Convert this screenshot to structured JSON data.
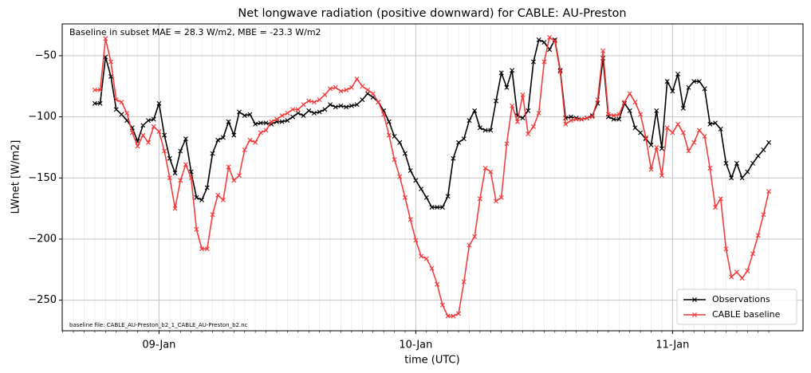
{
  "chart_data": {
    "type": "line",
    "title": "Net longwave radiation (positive downward) for CABLE: AU-Preston",
    "annotations": [
      "Baseline in subset MAE = 28.3 W/m2, MBE = -23.3 W/m2",
      "baseline file: CABLE_AU-Preston_b2_1_CABLE_AU-Preston_b2.nc"
    ],
    "xlabel": "time (UTC)",
    "ylabel": "LWnet [W/m2]",
    "categories": [
      null,
      null,
      null,
      null,
      null,
      null,
      null,
      null,
      null,
      null,
      null,
      null,
      "09-Jan",
      null,
      null,
      null,
      null,
      null,
      null,
      null,
      null,
      null,
      null,
      null,
      null,
      null,
      null,
      null,
      null,
      null,
      null,
      null,
      null,
      null,
      null,
      null,
      null,
      null,
      null,
      null,
      null,
      null,
      null,
      null,
      null,
      null,
      null,
      null,
      null,
      null,
      null,
      null,
      null,
      null,
      null,
      null,
      null,
      null,
      null,
      null,
      "10-Jan",
      null,
      null,
      null,
      null,
      null,
      null,
      null,
      null,
      null,
      null,
      null,
      null,
      null,
      null,
      null,
      null,
      null,
      null,
      null,
      null,
      null,
      null,
      null,
      null,
      null,
      null,
      null,
      null,
      null,
      null,
      null,
      null,
      null,
      null,
      null,
      null,
      null,
      null,
      null,
      null,
      null,
      null,
      null,
      null,
      null,
      null,
      null,
      "11-Jan",
      null,
      null,
      null,
      null,
      null,
      null,
      null,
      null,
      null,
      null,
      null,
      null,
      null,
      null,
      null,
      null,
      null,
      null
    ],
    "series": [
      {
        "name": "Observations",
        "color": "#000000",
        "values": [
          -89,
          -89,
          -51,
          -67,
          -94,
          -98,
          -103,
          -109,
          -120,
          -107,
          -103,
          -102,
          -89,
          -115,
          -134,
          -146,
          -128,
          -118,
          -145,
          -166,
          -168,
          -158,
          -130,
          -119,
          -117,
          -104,
          -115,
          -96,
          -99,
          -98,
          -106,
          -105,
          -105,
          -106,
          -104,
          -104,
          -103,
          -100,
          -97,
          -99,
          -95,
          -97,
          -96,
          -94,
          -90,
          -92,
          -91,
          -92,
          -91,
          -90,
          -86,
          -81,
          -84,
          -88,
          -95,
          -104,
          -116,
          -121,
          -130,
          -144,
          -152,
          -159,
          -166,
          -174,
          -174,
          -174,
          -165,
          -134,
          -121,
          -118,
          -103,
          -95,
          -109,
          -111,
          -111,
          -87,
          -64,
          -76,
          -62,
          -99,
          -101,
          -95,
          -55,
          -37,
          -39,
          -45,
          -37,
          -62,
          -101,
          -100,
          -101,
          -102,
          -101,
          -99,
          -89,
          -52,
          -100,
          -102,
          -102,
          -89,
          -95,
          -109,
          -113,
          -118,
          -123,
          -95,
          -126,
          -71,
          -79,
          -65,
          -93,
          -76,
          -71,
          -71,
          -77,
          -106,
          -105,
          -110,
          -138,
          -150,
          -138,
          -150,
          -145,
          -138,
          -132,
          -127,
          -121
        ]
      },
      {
        "name": "CABLE baseline",
        "color": "#f03535",
        "values": [
          -78,
          -78,
          -36,
          -55,
          -86,
          -88,
          -97,
          -113,
          -124,
          -115,
          -121,
          -108,
          -112,
          -128,
          -150,
          -175,
          -152,
          -139,
          -150,
          -192,
          -208,
          -208,
          -180,
          -164,
          -168,
          -141,
          -152,
          -148,
          -127,
          -119,
          -121,
          -113,
          -111,
          -104,
          -102,
          -99,
          -97,
          -94,
          -94,
          -90,
          -87,
          -88,
          -86,
          -82,
          -77,
          -76,
          -79,
          -78,
          -76,
          -69,
          -75,
          -78,
          -81,
          -88,
          -98,
          -115,
          -135,
          -149,
          -166,
          -184,
          -201,
          -214,
          -216,
          -224,
          -237,
          -254,
          -263,
          -263,
          -261,
          -235,
          -205,
          -198,
          -167,
          -142,
          -145,
          -169,
          -166,
          -122,
          -91,
          -104,
          -82,
          -114,
          -108,
          -97,
          -55,
          -35,
          -38,
          -63,
          -106,
          -103,
          -102,
          -102,
          -101,
          -100,
          -86,
          -46,
          -98,
          -99,
          -98,
          -88,
          -81,
          -88,
          -98,
          -117,
          -143,
          -125,
          -148,
          -109,
          -113,
          -106,
          -113,
          -128,
          -121,
          -111,
          -116,
          -142,
          -174,
          -167,
          -208,
          -231,
          -227,
          -232,
          -226,
          -212,
          -197,
          -180,
          -161
        ]
      }
    ],
    "ylim": [
      -275,
      -24
    ],
    "yticks": [
      {
        "value": -250,
        "label": "−250"
      },
      {
        "value": -200,
        "label": "−200"
      },
      {
        "value": -150,
        "label": "−150"
      },
      {
        "value": -100,
        "label": "−100"
      },
      {
        "value": -50,
        "label": "−50"
      }
    ],
    "grid": true,
    "legend": "lower right"
  }
}
